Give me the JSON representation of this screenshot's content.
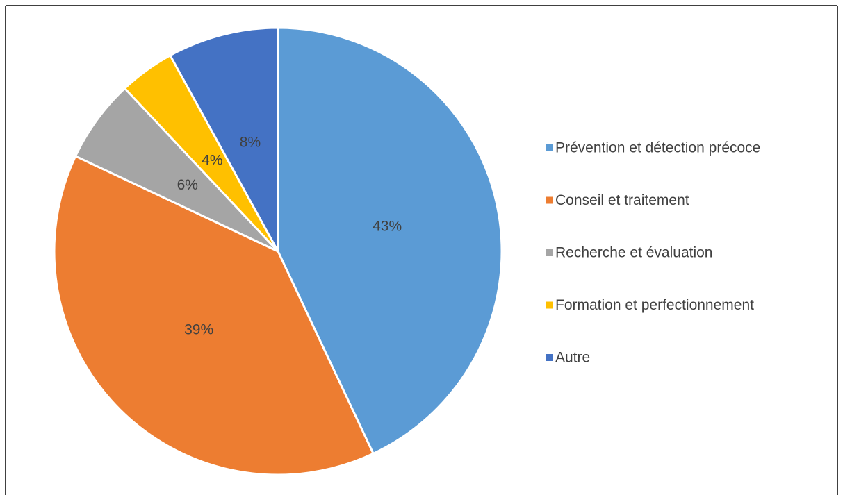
{
  "chart_data": {
    "type": "pie",
    "categories": [
      "Prévention et détection précoce",
      "Conseil et traitement",
      "Recherche et évaluation",
      "Formation et perfectionnement",
      "Autre"
    ],
    "values": [
      43,
      39,
      6,
      4,
      8
    ],
    "value_labels": [
      "43%",
      "39%",
      "6%",
      "4%",
      "8%"
    ],
    "colors": [
      "#5b9bd5",
      "#ed7d31",
      "#a5a5a5",
      "#ffc000",
      "#4472c4"
    ],
    "legend": "right"
  }
}
